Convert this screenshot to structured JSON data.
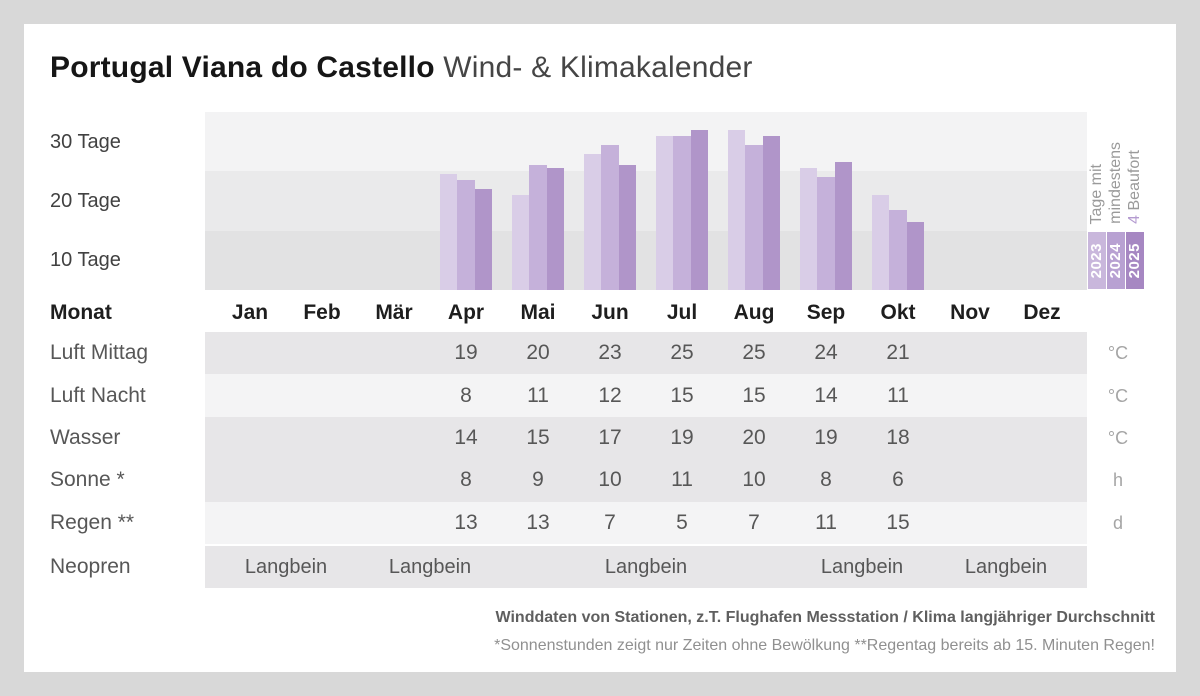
{
  "title": {
    "bold": "Portugal Viana do Castello",
    "regular": "Wind- & Klimakalender"
  },
  "chart_data": {
    "type": "bar",
    "title": "Tage mit mindestens 4 Beaufort",
    "categories": [
      "Jan",
      "Feb",
      "Mär",
      "Apr",
      "Mai",
      "Jun",
      "Jul",
      "Aug",
      "Sep",
      "Okt",
      "Nov",
      "Dez"
    ],
    "series": [
      {
        "name": "2023",
        "values": [
          null,
          null,
          null,
          19.5,
          16,
          23,
          26,
          27,
          20.5,
          16,
          null,
          null
        ]
      },
      {
        "name": "2024",
        "values": [
          null,
          null,
          null,
          18.5,
          21,
          24.5,
          26,
          24.5,
          19,
          13.5,
          null,
          null
        ]
      },
      {
        "name": "2025",
        "values": [
          null,
          null,
          null,
          17,
          20.5,
          21,
          27,
          26,
          21.5,
          11.5,
          null,
          null
        ]
      }
    ],
    "ylabel_ticks": [
      "30 Tage",
      "20 Tage",
      "10 Tage"
    ],
    "ylim": [
      0,
      30
    ],
    "grid": "banded-rows",
    "legend_position": "right",
    "legend_lines": [
      {
        "accent": "",
        "text": "Tage mit"
      },
      {
        "accent": "",
        "text": "mindestens"
      },
      {
        "accent": "4 ",
        "text": "Beaufort"
      }
    ]
  },
  "table": {
    "header_label": "Monat",
    "rows": [
      {
        "label": "Luft Mittag",
        "unit": "°C",
        "shade": "dark",
        "values": [
          null,
          null,
          null,
          19,
          20,
          23,
          25,
          25,
          24,
          21,
          null,
          null
        ]
      },
      {
        "label": "Luft Nacht",
        "unit": "°C",
        "shade": "light",
        "values": [
          null,
          null,
          null,
          8,
          11,
          12,
          15,
          15,
          14,
          11,
          null,
          null
        ]
      },
      {
        "label": "Wasser",
        "unit": "°C",
        "shade": "dark",
        "values": [
          null,
          null,
          null,
          14,
          15,
          17,
          19,
          20,
          19,
          18,
          null,
          null
        ]
      },
      {
        "label": "Sonne *",
        "unit": "h",
        "shade": "dark",
        "values": [
          null,
          null,
          null,
          8,
          9,
          10,
          11,
          10,
          8,
          6,
          null,
          null
        ]
      },
      {
        "label": "Regen **",
        "unit": "d",
        "shade": "light",
        "values": [
          null,
          null,
          null,
          13,
          13,
          7,
          5,
          7,
          11,
          15,
          null,
          null
        ]
      }
    ],
    "neopren": {
      "label": "Neopren",
      "shade": "dark",
      "entries": [
        {
          "text": "Langbein",
          "between": [
            0,
            1
          ]
        },
        {
          "text": "Langbein",
          "between": [
            2,
            3
          ]
        },
        {
          "text": "Langbein",
          "between": [
            5,
            6
          ]
        },
        {
          "text": "Langbein",
          "between": [
            8,
            9
          ]
        },
        {
          "text": "Langbein",
          "between": [
            10,
            11
          ]
        }
      ]
    }
  },
  "footer": {
    "line1": "Winddaten von Stationen, z.T. Flughafen Messstation / Klima langjähriger Durchschnitt",
    "line2": "*Sonnenstunden zeigt nur Zeiten ohne Bewölkung  **Regentag bereits ab 15. Minuten Regen!"
  },
  "colors": {
    "page_bg": "#d8d8d8",
    "card_bg": "#ffffff",
    "stripe_top": "#f3f3f4",
    "stripe_mid": "#eaeaeb",
    "stripe_bottom": "#e2e2e3",
    "band_dark": "#e7e6e8",
    "band_light": "#f4f4f5",
    "bar_2023": "#d9cde7",
    "bar_2024": "#c5b1da",
    "bar_2025": "#b095c9",
    "chip_2023": "#c9b7dc",
    "chip_2024": "#b8a1d2",
    "chip_2025": "#a687c2",
    "accent_purple": "#b49bd0"
  }
}
